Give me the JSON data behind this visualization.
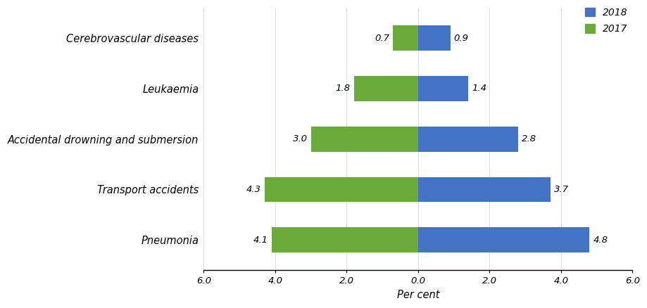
{
  "categories": [
    "Pneumonia",
    "Transport accidents",
    "Accidental drowning and submersion",
    "Leukaemia",
    "Cerebrovascular diseases"
  ],
  "values_2017": [
    4.1,
    4.3,
    3.0,
    1.8,
    0.7
  ],
  "values_2018": [
    4.8,
    3.7,
    2.8,
    1.4,
    0.9
  ],
  "color_2017": "#6aaa3a",
  "color_2018": "#4472c4",
  "xlabel": "Per cent",
  "legend_2018": "2018",
  "legend_2017": "2017",
  "xlim": [
    -6.0,
    6.0
  ],
  "xticks": [
    -6.0,
    -4.0,
    -2.0,
    0.0,
    2.0,
    4.0,
    6.0
  ],
  "xticklabels": [
    "6.0",
    "4.0",
    "2.0",
    "0.0",
    "2.0",
    "4.0",
    "6.0"
  ],
  "background_color": "#ffffff",
  "bar_height": 0.5,
  "fontsize_labels": 10.5,
  "fontsize_ticks": 9.5,
  "fontsize_xlabel": 10.5,
  "fontsize_legend": 10,
  "fontsize_annot": 9.5
}
